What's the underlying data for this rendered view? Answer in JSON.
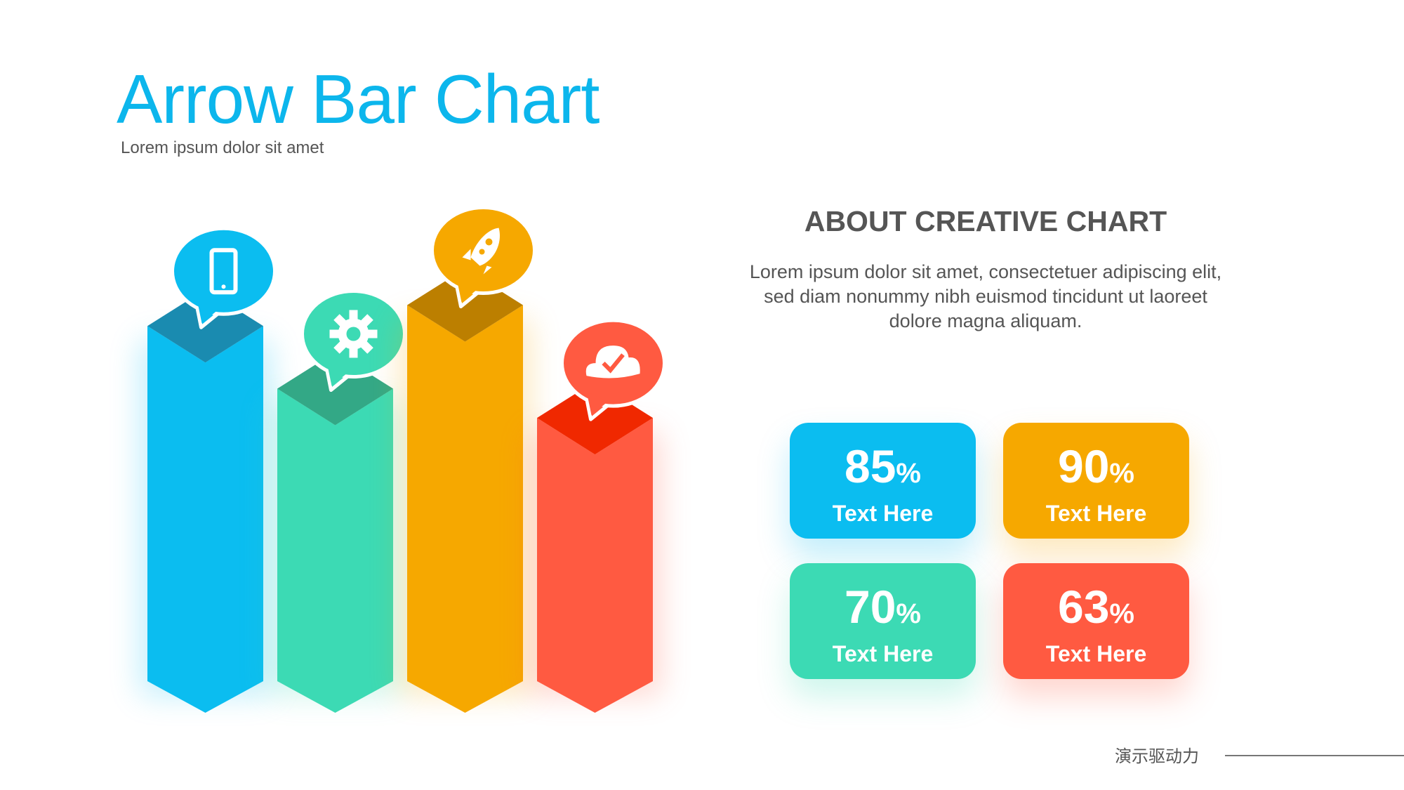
{
  "header": {
    "title": "Arrow Bar Chart",
    "subtitle": "Lorem ipsum dolor sit amet"
  },
  "about": {
    "heading": "ABOUT CREATIVE CHART",
    "body": "Lorem ipsum dolor sit amet, consectetuer adipiscing elit, sed diam nonummy nibh euismod tincidunt ut laoreet dolore magna aliquam."
  },
  "cards": [
    {
      "value": "85",
      "unit": "%",
      "label": "Text Here",
      "color": "#0bbdf0"
    },
    {
      "value": "90",
      "unit": "%",
      "label": "Text Here",
      "color": "#f6a800"
    },
    {
      "value": "70",
      "unit": "%",
      "label": "Text Here",
      "color": "#3cdab4"
    },
    {
      "value": "63",
      "unit": "%",
      "label": "Text Here",
      "color": "#ff5a41"
    }
  ],
  "chart_data": {
    "type": "bar",
    "style": "3d-arrow-bars",
    "categories": [
      "tablet",
      "settings",
      "launch",
      "cloud-check"
    ],
    "values": [
      85,
      70,
      90,
      63
    ],
    "colors": [
      "#0bbdf0",
      "#3cdab4",
      "#f6a800",
      "#ff5a41"
    ],
    "top_colors": [
      "#1a8bb0",
      "#33a886",
      "#bc7f00",
      "#f02800"
    ],
    "icons": [
      "tablet-icon",
      "gear-icon",
      "rocket-icon",
      "cloud-check-icon"
    ],
    "ylim": [
      0,
      100
    ],
    "grid": false
  },
  "footer": {
    "brand": "演示驱动力"
  }
}
